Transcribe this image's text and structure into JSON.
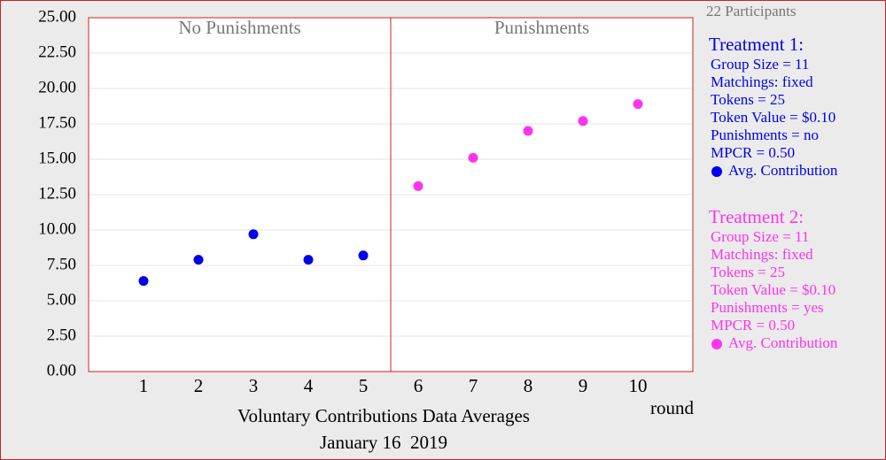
{
  "chart_data": {
    "type": "scatter",
    "title": "Voluntary Contributions Data Averages",
    "subtitle": "January 16  2019",
    "x_label": "round",
    "participants": "22 Participants",
    "panel_labels": [
      "No Punishments",
      "Punishments"
    ],
    "divider": 5.5,
    "xlim": [
      0,
      11
    ],
    "xticks": [
      1,
      2,
      3,
      4,
      5,
      6,
      7,
      8,
      9,
      10
    ],
    "ylim": [
      0,
      25
    ],
    "yticks": [
      {
        "value": 0,
        "label": "0.00"
      },
      {
        "value": 2.5,
        "label": "2.50"
      },
      {
        "value": 5,
        "label": "5.00"
      },
      {
        "value": 7.5,
        "label": "7.50"
      },
      {
        "value": 10,
        "label": "10.00"
      },
      {
        "value": 12.5,
        "label": "12.50"
      },
      {
        "value": 15,
        "label": "15.00"
      },
      {
        "value": 17.5,
        "label": "17.50"
      },
      {
        "value": 20,
        "label": "20.00"
      },
      {
        "value": 22.5,
        "label": "22.50"
      },
      {
        "value": 25,
        "label": "25.00"
      }
    ],
    "grid": true,
    "series": [
      {
        "name": "Avg. Contribution",
        "color": "#0000ee",
        "x": [
          1,
          2,
          3,
          4,
          5
        ],
        "values": [
          6.4,
          7.9,
          9.7,
          7.9,
          8.2
        ],
        "treatment": {
          "title": "Treatment 1:",
          "lines": [
            "Group Size = 11",
            "Matchings: fixed",
            "Tokens = 25",
            "Token Value = $0.10",
            "Punishments = no",
            "MPCR = 0.50"
          ]
        }
      },
      {
        "name": "Avg. Contribution",
        "color": "#ff33ee",
        "x": [
          6,
          7,
          8,
          9,
          10
        ],
        "values": [
          13.1,
          15.1,
          17.0,
          17.7,
          18.9
        ],
        "treatment": {
          "title": "Treatment 2:",
          "lines": [
            "Group Size = 11",
            "Matchings: fixed",
            "Tokens = 25",
            "Token Value = $0.10",
            "Punishments = yes",
            "MPCR = 0.50"
          ]
        }
      }
    ]
  }
}
